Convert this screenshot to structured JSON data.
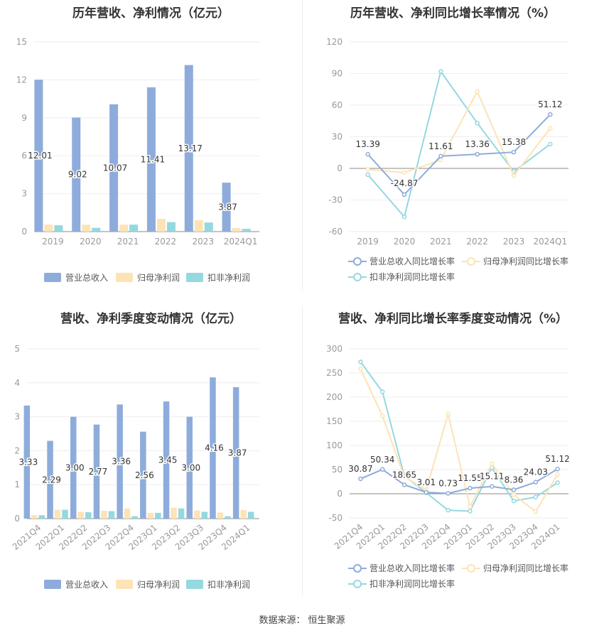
{
  "colors": {
    "revenue": "#8eacdb",
    "parent_profit": "#fde3b5",
    "non_recurring": "#94d8e0",
    "revenue_growth": "#8eacdb",
    "parent_growth": "#fde3b5",
    "non_recurring_growth": "#94d8e0",
    "axis_text": "#999999",
    "grid": "#eeeeee"
  },
  "source": {
    "label": "数据来源：",
    "name": "恒生聚源"
  },
  "chart_data": [
    {
      "type": "bar",
      "title": "历年营收、净利情况（亿元）",
      "categories": [
        "2019",
        "2020",
        "2021",
        "2022",
        "2023",
        "2024Q1"
      ],
      "ylim": [
        0,
        15
      ],
      "yticks": [
        "0",
        "3",
        "6",
        "9",
        "12",
        "15"
      ],
      "series": [
        {
          "name": "营业总收入",
          "values": [
            12.01,
            9.02,
            10.07,
            11.41,
            13.17,
            3.87
          ],
          "labels": [
            "12.01",
            "9.02",
            "10.07",
            "11.41",
            "13.17",
            "3.87"
          ]
        },
        {
          "name": "归母净利润",
          "values": [
            0.55,
            0.55,
            0.55,
            1.0,
            0.9,
            0.28
          ]
        },
        {
          "name": "扣非净利润",
          "values": [
            0.5,
            0.3,
            0.55,
            0.75,
            0.72,
            0.22
          ]
        }
      ],
      "grid": true,
      "legend": "bottom"
    },
    {
      "type": "line",
      "title": "历年营收、净利同比增长率情况（%）",
      "categories": [
        "2019",
        "2020",
        "2021",
        "2022",
        "2023",
        "2024Q1"
      ],
      "ylim": [
        -60,
        120
      ],
      "yticks": [
        "-60",
        "-30",
        "0",
        "30",
        "60",
        "90",
        "120"
      ],
      "series": [
        {
          "name": "营业总收入同比增长率",
          "values": [
            13.39,
            -24.87,
            11.61,
            13.36,
            15.38,
            51.12
          ],
          "labels": [
            "13.39",
            "-24.87",
            "11.61",
            "13.36",
            "15.38",
            "51.12"
          ]
        },
        {
          "name": "归母净利润同比增长率",
          "values": [
            -1,
            -4,
            8,
            73,
            -7,
            38
          ]
        },
        {
          "name": "扣非净利润同比增长率",
          "values": [
            -6,
            -46,
            92,
            43,
            -3,
            23
          ]
        }
      ],
      "grid": true,
      "legend": "bottom"
    },
    {
      "type": "bar",
      "title": "营收、净利季度变动情况（亿元）",
      "categories": [
        "2021Q4",
        "2022Q1",
        "2022Q2",
        "2022Q3",
        "2022Q4",
        "2023Q1",
        "2023Q2",
        "2023Q3",
        "2023Q4",
        "2024Q1"
      ],
      "ylim": [
        0,
        5
      ],
      "yticks": [
        "0",
        "1",
        "2",
        "3",
        "4",
        "5"
      ],
      "series": [
        {
          "name": "营业总收入",
          "values": [
            3.33,
            2.29,
            3.0,
            2.77,
            3.36,
            2.56,
            3.45,
            3.0,
            4.16,
            3.87
          ],
          "labels": [
            "3.33",
            "2.29",
            "3.00",
            "2.77",
            "3.36",
            "2.56",
            "3.45",
            "3.00",
            "4.16",
            "3.87"
          ]
        },
        {
          "name": "归母净利润",
          "values": [
            0.1,
            0.26,
            0.2,
            0.23,
            0.3,
            0.17,
            0.32,
            0.24,
            0.18,
            0.25
          ]
        },
        {
          "name": "扣非净利润",
          "values": [
            0.1,
            0.26,
            0.19,
            0.22,
            0.07,
            0.17,
            0.3,
            0.2,
            0.07,
            0.2
          ]
        }
      ],
      "grid": true,
      "legend": "bottom"
    },
    {
      "type": "line",
      "title": "营收、净利同比增长率季度变动情况（%）",
      "categories": [
        "2021Q4",
        "2022Q1",
        "2022Q2",
        "2022Q3",
        "2022Q4",
        "2023Q1",
        "2023Q2",
        "2023Q3",
        "2023Q4",
        "2024Q1"
      ],
      "ylim": [
        -50,
        300
      ],
      "yticks": [
        "-50",
        "0",
        "50",
        "100",
        "150",
        "200",
        "250",
        "300"
      ],
      "series": [
        {
          "name": "营业总收入同比增长率",
          "values": [
            30.87,
            50.34,
            18.65,
            3.01,
            0.73,
            11.55,
            15.11,
            8.36,
            24.03,
            51.12
          ],
          "labels": [
            "30.87",
            "50.34",
            "18.65",
            "3.01",
            "0.73",
            "11.55",
            "15.11",
            "8.36",
            "24.03",
            "51.12"
          ]
        },
        {
          "name": "归母净利润同比增长率",
          "values": [
            258,
            161,
            35,
            8,
            165,
            -27,
            62,
            -2,
            -37,
            40
          ]
        },
        {
          "name": "扣非净利润同比增长率",
          "values": [
            273,
            211,
            37,
            2,
            -34,
            -36,
            54,
            -15,
            -7,
            23
          ]
        }
      ],
      "grid": true,
      "legend": "bottom"
    }
  ]
}
